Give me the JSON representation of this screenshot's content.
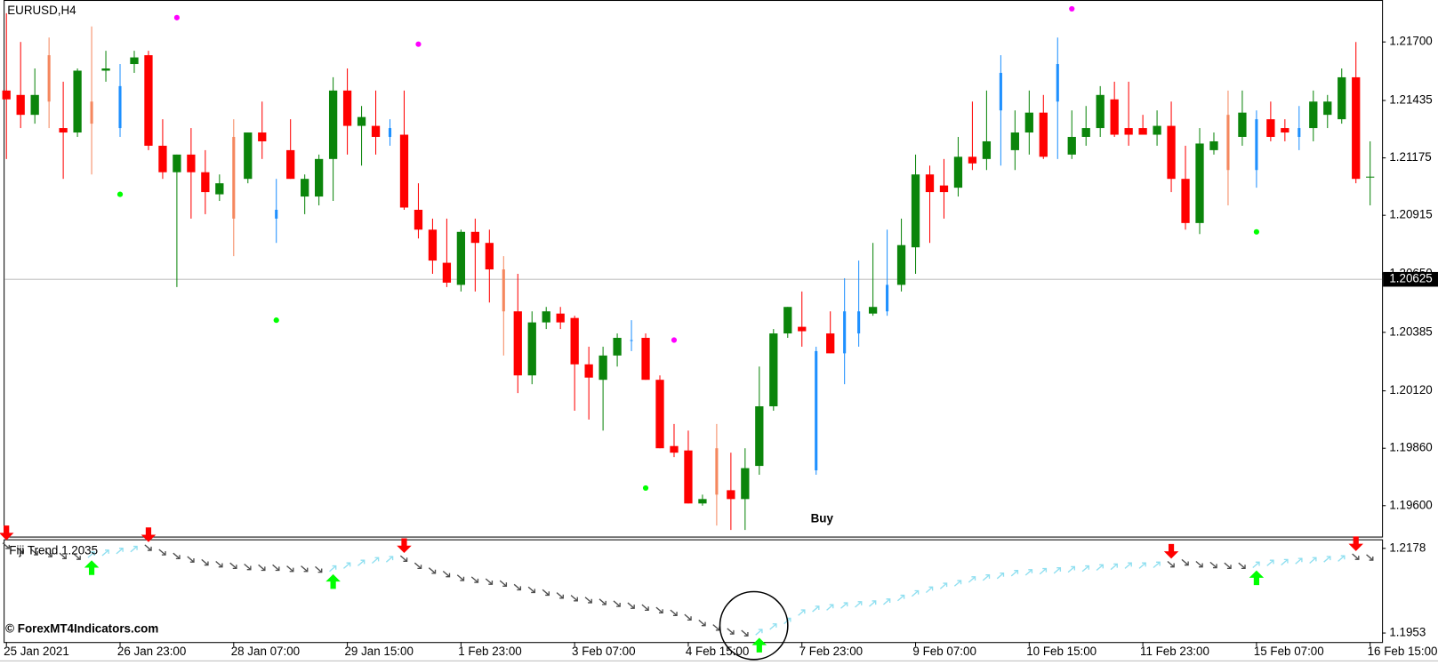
{
  "chart_data": [
    {
      "type": "candlestick",
      "title": "EURUSD,H4",
      "annotation": "Buy",
      "categories": [
        "25 Jan 2021",
        null,
        null,
        null,
        null,
        null,
        null,
        null,
        "26 Jan 23:00",
        null,
        null,
        null,
        null,
        null,
        null,
        null,
        "28 Jan 07:00",
        null,
        null,
        null,
        null,
        null,
        null,
        null,
        "29 Jan 15:00",
        null,
        null,
        null,
        null,
        null,
        null,
        null,
        "1 Feb 23:00",
        null,
        null,
        null,
        null,
        null,
        null,
        null,
        "3 Feb 07:00",
        null,
        null,
        null,
        null,
        null,
        null,
        null,
        "4 Feb 15:00",
        null,
        null,
        null,
        null,
        null,
        null,
        null,
        "7 Feb 23:00",
        null,
        null,
        null,
        null,
        null,
        null,
        null,
        "9 Feb 07:00",
        null,
        null,
        null,
        null,
        null,
        null,
        null,
        "10 Feb 15:00",
        null,
        null,
        null,
        null,
        null,
        null,
        null,
        "11 Feb 23:00",
        null,
        null,
        null,
        null,
        null,
        null,
        null,
        "15 Feb 07:00",
        null,
        null,
        null,
        null,
        null,
        null,
        null,
        "16 Feb 15:00"
      ],
      "open": [
        1.2148,
        1.2146,
        1.2137,
        1.2164,
        1.2131,
        1.2129,
        1.2143,
        1.2157,
        1.2131,
        1.216,
        1.2164,
        1.2123,
        1.2111,
        1.2119,
        1.2111,
        1.2101,
        1.2127,
        1.2108,
        1.2129,
        1.209,
        1.2121,
        1.21,
        1.21,
        1.2117,
        1.2148,
        1.2132,
        1.2132,
        1.2127,
        1.2128,
        1.2094,
        1.2085,
        1.207,
        1.206,
        1.2084,
        1.2079,
        1.2067,
        1.2048,
        1.2019,
        1.2043,
        1.2047,
        1.2045,
        1.2024,
        1.2017,
        1.2028,
        1.2035,
        1.2036,
        1.2017,
        1.1987,
        1.1985,
        1.1961,
        1.1986,
        1.1967,
        1.1963,
        1.1978,
        1.2005,
        1.2038,
        1.2041,
        1.1976,
        1.2038,
        1.2029,
        1.2038,
        1.2047,
        1.2048,
        1.206,
        1.2077,
        1.211,
        1.2105,
        1.2104,
        1.2118,
        1.2117,
        1.2139,
        1.2121,
        1.2129,
        1.2138,
        1.2143,
        1.2119,
        1.2127,
        1.2131,
        1.2144,
        1.2131,
        1.2131,
        1.2128,
        1.2132,
        1.2108,
        1.2088,
        1.2121,
        1.2137,
        1.2127,
        1.2112,
        1.2135,
        1.2131,
        1.2127,
        1.2131,
        1.2137,
        1.2135,
        1.2154,
        1.2109
      ],
      "high": [
        1.2183,
        1.217,
        1.2158,
        1.2172,
        1.2152,
        1.2158,
        1.2177,
        1.2166,
        1.216,
        1.2166,
        1.2166,
        1.2135,
        1.2119,
        1.2131,
        1.2121,
        1.211,
        1.2135,
        1.2129,
        1.2143,
        1.2108,
        1.2135,
        1.211,
        1.2119,
        1.2154,
        1.2158,
        1.2141,
        1.2148,
        1.2135,
        1.2148,
        1.2106,
        1.209,
        1.209,
        1.2085,
        1.209,
        1.2085,
        1.2073,
        1.2065,
        1.2048,
        1.205,
        1.205,
        1.2046,
        1.2032,
        1.2032,
        1.2038,
        1.2044,
        1.2038,
        1.2019,
        1.1997,
        1.1994,
        1.1965,
        1.1997,
        1.1984,
        1.1986,
        1.2023,
        1.204,
        1.205,
        1.2057,
        1.2032,
        1.2048,
        1.2063,
        1.2071,
        1.2079,
        1.2085,
        1.209,
        1.2119,
        1.2114,
        1.2117,
        1.2127,
        1.2143,
        1.2148,
        1.2164,
        1.2139,
        1.2148,
        1.2146,
        1.2172,
        1.2139,
        1.2141,
        1.215,
        1.2152,
        1.2152,
        1.2137,
        1.2139,
        1.2143,
        1.2123,
        1.2131,
        1.2129,
        1.2148,
        1.2148,
        1.2139,
        1.2143,
        1.2135,
        1.2141,
        1.2148,
        1.2146,
        1.2158,
        1.217,
        1.2125
      ],
      "low": [
        1.2117,
        1.2131,
        1.2133,
        1.2131,
        1.2108,
        1.2127,
        1.211,
        1.2152,
        1.2127,
        1.2156,
        1.2121,
        1.2108,
        1.2059,
        1.209,
        1.2092,
        1.2098,
        1.2073,
        1.2106,
        1.2117,
        1.2079,
        1.2108,
        1.2092,
        1.2096,
        1.2098,
        1.2119,
        1.2114,
        1.2119,
        1.2123,
        1.2094,
        1.2081,
        1.2065,
        1.2059,
        1.2057,
        1.2057,
        1.2052,
        1.2028,
        1.2011,
        1.2015,
        1.204,
        1.204,
        1.2003,
        1.1999,
        1.1994,
        1.2023,
        1.203,
        1.2017,
        1.1986,
        1.1982,
        1.1961,
        1.196,
        1.1951,
        1.1949,
        1.1949,
        1.1974,
        1.2003,
        1.2036,
        1.2032,
        1.1974,
        1.2029,
        1.2015,
        1.2032,
        1.2046,
        1.2046,
        1.2057,
        1.2065,
        1.2079,
        1.209,
        1.21,
        1.2112,
        1.2112,
        1.2114,
        1.2112,
        1.2119,
        1.2117,
        1.2117,
        1.2117,
        1.2123,
        1.2127,
        1.2127,
        1.2123,
        1.2128,
        1.2123,
        1.2102,
        1.2085,
        1.2083,
        1.2119,
        1.2096,
        1.2123,
        1.2104,
        1.2125,
        1.2125,
        1.2121,
        1.2125,
        1.2131,
        1.2133,
        1.2106,
        1.2096
      ],
      "close": [
        1.2144,
        1.2137,
        1.2146,
        1.2143,
        1.2129,
        1.2157,
        1.2133,
        1.2158,
        1.215,
        1.2163,
        1.2123,
        1.2111,
        1.2119,
        1.2111,
        1.2102,
        1.2106,
        1.209,
        1.2129,
        1.2125,
        1.2094,
        1.2108,
        1.2108,
        1.2117,
        1.2148,
        1.2132,
        1.2136,
        1.2127,
        1.2131,
        1.2095,
        1.2085,
        1.2071,
        1.2061,
        1.2084,
        1.2079,
        1.2067,
        1.2048,
        1.2019,
        1.2043,
        1.2048,
        1.2043,
        1.2024,
        1.2018,
        1.2028,
        1.2036,
        1.2035,
        1.2017,
        1.1986,
        1.1984,
        1.1961,
        1.1963,
        1.1965,
        1.1963,
        1.1977,
        1.2005,
        1.2038,
        1.205,
        1.2039,
        1.203,
        1.2029,
        1.2048,
        1.2048,
        1.205,
        1.206,
        1.2078,
        1.211,
        1.2102,
        1.2102,
        1.2118,
        1.2115,
        1.2125,
        1.2156,
        1.2129,
        1.2138,
        1.2118,
        1.216,
        1.2127,
        1.2131,
        1.2146,
        1.2128,
        1.2128,
        1.2128,
        1.2132,
        1.2108,
        1.2088,
        1.2124,
        1.2125,
        1.2112,
        1.2138,
        1.2135,
        1.2127,
        1.2129,
        1.2131,
        1.2143,
        1.2143,
        1.2154,
        1.2108,
        1.2109
      ],
      "kind": [
        "down",
        "down",
        "up",
        "down_thin",
        "down",
        "up",
        "down_thin",
        "up",
        "up_thin",
        "up",
        "down",
        "down",
        "up",
        "down",
        "down",
        "up",
        "down_thin",
        "up",
        "down",
        "up_thin",
        "down",
        "up",
        "up",
        "up",
        "down",
        "up",
        "down",
        "up_thin",
        "down",
        "down",
        "down",
        "down",
        "up",
        "down",
        "down",
        "down_thin",
        "down",
        "up",
        "up",
        "down",
        "down",
        "down",
        "up",
        "up",
        "up_thin",
        "down",
        "down",
        "down",
        "down",
        "up",
        "down_thin",
        "down",
        "up",
        "up",
        "up",
        "up",
        "down",
        "up_thin",
        "down",
        "up_thin",
        "up_thin",
        "up",
        "up_thin",
        "up",
        "up",
        "down",
        "down",
        "up",
        "down",
        "up",
        "up_thin",
        "up",
        "up",
        "down",
        "up_thin",
        "up",
        "up",
        "up",
        "down",
        "down",
        "down",
        "up",
        "down",
        "down",
        "up",
        "up",
        "down_thin",
        "up",
        "up_thin",
        "down",
        "down",
        "up_thin",
        "up",
        "up",
        "up",
        "down",
        "up"
      ],
      "palette": {
        "up": "#0b850b",
        "down": "#ff0000",
        "up_thin": "#1e90ff",
        "down_thin": "#f5875e"
      },
      "upper_dots": {
        "color": "#ff00ff",
        "values": [
          null,
          null,
          null,
          null,
          null,
          null,
          null,
          null,
          null,
          null,
          null,
          null,
          1.2181,
          null,
          null,
          null,
          null,
          null,
          null,
          null,
          null,
          null,
          null,
          null,
          null,
          null,
          null,
          null,
          null,
          1.2169,
          null,
          null,
          null,
          null,
          null,
          null,
          null,
          null,
          null,
          null,
          null,
          null,
          null,
          null,
          null,
          null,
          null,
          1.2035,
          null,
          null,
          null,
          null,
          null,
          null,
          null,
          null,
          null,
          null,
          null,
          null,
          null,
          null,
          null,
          null,
          null,
          null,
          null,
          null,
          null,
          null,
          null,
          null,
          null,
          null,
          null,
          1.2185,
          null,
          null,
          null,
          null,
          null,
          null,
          null,
          null,
          null,
          null,
          null,
          null,
          null,
          null,
          null,
          null,
          null,
          null,
          null,
          null,
          null
        ]
      },
      "lower_dots": {
        "color": "#00ff00",
        "values": [
          null,
          null,
          null,
          null,
          null,
          null,
          null,
          null,
          1.2101,
          null,
          null,
          null,
          null,
          null,
          null,
          null,
          null,
          null,
          null,
          1.2044,
          null,
          null,
          null,
          null,
          null,
          null,
          null,
          null,
          null,
          null,
          null,
          null,
          null,
          null,
          null,
          null,
          null,
          null,
          null,
          null,
          null,
          null,
          null,
          null,
          null,
          1.1968,
          null,
          null,
          null,
          null,
          null,
          null,
          null,
          null,
          null,
          null,
          null,
          null,
          null,
          null,
          null,
          null,
          null,
          null,
          null,
          null,
          null,
          null,
          null,
          null,
          null,
          null,
          null,
          null,
          null,
          null,
          null,
          null,
          null,
          null,
          null,
          null,
          null,
          null,
          null,
          null,
          null,
          null,
          1.2084,
          null,
          null,
          null,
          null,
          null,
          null,
          null,
          null,
          null
        ]
      },
      "current_price": 1.20625,
      "ylim": [
        1.1946,
        1.2189
      ],
      "yticks": [
        {
          "value": 1.217,
          "label": "1.21700"
        },
        1.21435,
        1.21175,
        1.20915,
        {
          "value": 1.2065,
          "label": "1.20650"
        },
        1.20385,
        {
          "value": 1.2012,
          "label": "1.20120"
        },
        {
          "value": 1.1986,
          "label": "1.19860"
        },
        {
          "value": 1.196,
          "label": "1.19600"
        }
      ]
    },
    {
      "type": "line",
      "title": "Fiji Trend 1.2035",
      "values": [
        1.2185,
        1.2173,
        1.2168,
        1.2163,
        1.2158,
        1.2156,
        1.2161,
        1.2166,
        1.2171,
        1.2176,
        1.218,
        1.2168,
        1.2158,
        1.2149,
        1.2141,
        1.2136,
        1.2132,
        1.2129,
        1.2127,
        1.2127,
        1.2124,
        1.2124,
        1.2122,
        1.2124,
        1.2132,
        1.2139,
        1.2146,
        1.2149,
        1.2151,
        1.2132,
        1.2119,
        1.211,
        1.21,
        1.2095,
        1.209,
        1.2085,
        1.2075,
        1.2068,
        1.2061,
        1.2053,
        1.2046,
        1.2041,
        1.2036,
        1.2031,
        1.2026,
        1.2021,
        1.2014,
        1.2007,
        1.1995,
        1.198,
        1.1968,
        1.1958,
        1.1953,
        1.1955,
        1.197,
        1.1985,
        1.2007,
        1.2017,
        1.2021,
        1.2026,
        1.2029,
        1.2031,
        1.2036,
        1.2046,
        1.2058,
        1.2068,
        1.2078,
        1.2085,
        1.2095,
        1.21,
        1.2105,
        1.2112,
        1.2114,
        1.2117,
        1.2119,
        1.2122,
        1.2124,
        1.2127,
        1.2129,
        1.2132,
        1.2132,
        1.2134,
        1.2136,
        1.2141,
        1.2136,
        1.2134,
        1.2132,
        1.2132,
        1.2134,
        1.2139,
        1.2141,
        1.2144,
        1.2146,
        1.2149,
        1.2151,
        1.2156,
        1.2154
      ],
      "trend": [
        "down",
        "down",
        "down",
        "down",
        "down",
        "down",
        "up",
        "up",
        "up",
        "up",
        "down",
        "down",
        "down",
        "down",
        "down",
        "down",
        "down",
        "down",
        "down",
        "down",
        "down",
        "down",
        "down",
        "up",
        "up",
        "up",
        "up",
        "up",
        "down",
        "down",
        "down",
        "down",
        "down",
        "down",
        "down",
        "down",
        "down",
        "down",
        "down",
        "down",
        "down",
        "down",
        "down",
        "down",
        "down",
        "down",
        "down",
        "down",
        "down",
        "down",
        "down",
        "down",
        "down",
        "up",
        "up",
        "up",
        "up",
        "up",
        "up",
        "up",
        "up",
        "up",
        "up",
        "up",
        "up",
        "up",
        "up",
        "up",
        "up",
        "up",
        "up",
        "up",
        "up",
        "up",
        "up",
        "up",
        "up",
        "up",
        "up",
        "up",
        "up",
        "up",
        "down",
        "down",
        "down",
        "down",
        "down",
        "down",
        "up",
        "up",
        "up",
        "up",
        "up",
        "up",
        "up",
        "down",
        "down"
      ],
      "up_color": "#8fdff0",
      "down_color": "#4d4d4d",
      "buy_color": "#00ff00",
      "sell_color": "#ff0000",
      "ylim": [
        1.1929,
        1.2202
      ],
      "yticks": [
        1.2178,
        1.1953
      ]
    }
  ],
  "watermark": "© ForexMT4Indicators.com"
}
